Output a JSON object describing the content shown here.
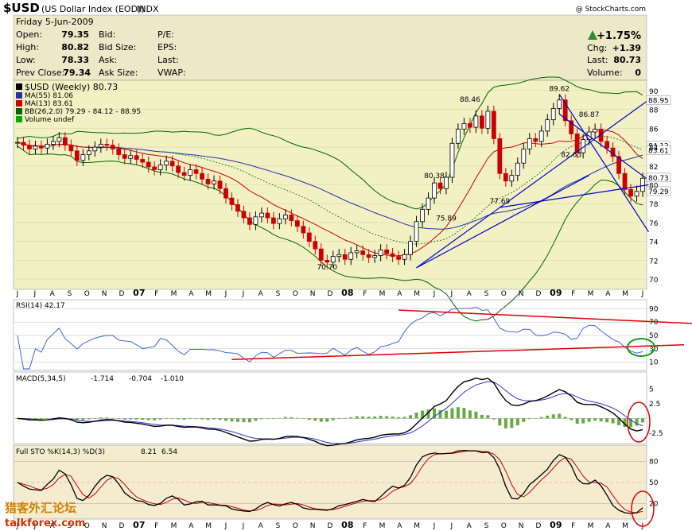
{
  "header": {
    "symbol": "$USD",
    "name": "(US Dollar Index (EOD))",
    "exchange": "INDX",
    "copyright": "@ StockCharts.com"
  },
  "quote": {
    "date": "Friday  5-Jun-2009",
    "open_label": "Open:",
    "open": "79.35",
    "high_label": "High:",
    "high": "80.82",
    "low_label": "Low:",
    "low": "78.33",
    "prev_label": "Prev Close:",
    "prev": "79.34",
    "bid_label": "Bid:",
    "bidsize_label": "Bid Size:",
    "ask_label": "Ask:",
    "asksize_label": "Ask Size:",
    "pe_label": "P/E:",
    "eps_label": "EPS:",
    "last_label": "Last:",
    "vwap_label": "VWAP:",
    "pct_change": "+1.75%",
    "chg_label": "Chg:",
    "chg": "+1.39",
    "last2_label": "Last:",
    "last2": "80.73",
    "volume_label": "Volume:",
    "volume": "0",
    "up_color": "#2e8b2e"
  },
  "legend": {
    "main": "$USD (Weekly) 80.73",
    "ma55": "MA(55) 81.06",
    "ma13": "MA(13) 83.61",
    "bb": "BB(26,2.0) 79.29 - 84.12 - 88.95",
    "volume": "Volume undef"
  },
  "panels": {
    "rsi": "RSI(14) 42.17",
    "macd_label": "MACD(5,34,5)",
    "macd_v1": "-1.714",
    "macd_v2": "-0.704",
    "macd_v3": "-1.010",
    "sto_label": "Full STO %K(14,3) %D(3)",
    "sto_k": "8.21",
    "sto_d": "6.54"
  },
  "watermark": {
    "chinese": "猎客外汇论坛",
    "site": "talkforex.com"
  },
  "x_axis_labels": [
    "J",
    "J",
    "A",
    "S",
    "O",
    "N",
    "D",
    "07",
    "F",
    "M",
    "A",
    "M",
    "J",
    "J",
    "A",
    "S",
    "O",
    "N",
    "D",
    "08",
    "F",
    "M",
    "A",
    "M",
    "J",
    "J",
    "A",
    "S",
    "O",
    "N",
    "D",
    "09",
    "F",
    "M",
    "A",
    "M",
    "J"
  ],
  "colors": {
    "up": "#000000",
    "down": "#cc0000",
    "ma55": "#2233aa",
    "ma13": "#cc0000",
    "bb": "#006600",
    "trend_blue": "#0000cc",
    "trend_red": "#dd0000",
    "rsi": "#3355cc",
    "macd_hist": "#66aa44",
    "signal": "#3333cc"
  },
  "chart_data": {
    "type": "candlestick",
    "title": "$USD (US Dollar Index (EOD)) Weekly",
    "ylim": [
      69,
      91
    ],
    "y_ticks": [
      70,
      72,
      74,
      76,
      78,
      80,
      82,
      84,
      86,
      88,
      90
    ],
    "price_annotations": [
      {
        "label": "70.70",
        "value": 70.7
      },
      {
        "label": "75.89",
        "value": 75.89
      },
      {
        "label": "77.69",
        "value": 77.69
      },
      {
        "label": "80.38",
        "value": 80.38
      },
      {
        "label": "88.46",
        "value": 88.46
      },
      {
        "label": "89.62",
        "value": 89.62
      },
      {
        "label": "86.87",
        "value": 86.87
      },
      {
        "label": "82.63",
        "value": 82.63
      }
    ],
    "right_labels": [
      {
        "label": "88.95",
        "value": 88.95
      },
      {
        "label": "84.12",
        "value": 84.12
      },
      {
        "label": "83.61",
        "value": 83.61
      },
      {
        "label": "80.73",
        "value": 80.73
      },
      {
        "label": "79.29",
        "value": 79.29
      }
    ],
    "weekly_close": [
      84.5,
      84.2,
      83.8,
      84.1,
      83.9,
      84.3,
      84.6,
      85.0,
      84.2,
      83.6,
      82.6,
      83.2,
      83.6,
      84.0,
      84.3,
      84.2,
      83.8,
      83.2,
      82.8,
      83.1,
      82.7,
      82.4,
      81.9,
      81.6,
      82.1,
      82.5,
      82.0,
      81.3,
      81.0,
      81.6,
      81.2,
      80.6,
      80.1,
      80.4,
      79.6,
      78.6,
      77.9,
      77.2,
      76.5,
      75.8,
      76.6,
      77.0,
      76.5,
      75.9,
      76.4,
      76.8,
      76.2,
      75.6,
      74.9,
      74.0,
      73.2,
      72.0,
      71.8,
      72.4,
      72.6,
      72.1,
      72.8,
      73.0,
      72.6,
      72.3,
      72.5,
      73.1,
      72.7,
      72.4,
      72.1,
      72.6,
      74.0,
      76.1,
      77.4,
      78.6,
      80.2,
      79.6,
      80.8,
      84.4,
      85.9,
      86.5,
      86.1,
      87.3,
      86.0,
      87.8,
      84.9,
      81.2,
      80.4,
      81.0,
      82.3,
      83.8,
      84.9,
      84.6,
      85.7,
      86.9,
      88.1,
      89.0,
      86.8,
      85.4,
      83.4,
      84.8,
      85.6,
      85.9,
      84.6,
      83.9,
      83.0,
      81.2,
      79.5,
      78.8,
      79.3,
      80.7
    ],
    "rsi": {
      "ylim": [
        0,
        100
      ],
      "y_ticks": [
        10,
        30,
        50,
        70,
        90
      ],
      "last": 42.17
    },
    "macd": {
      "y_ticks": [
        -2.5,
        2.5,
        5.0
      ],
      "last_macd": -1.714,
      "last_signal": -0.704,
      "last_hist": -1.01
    },
    "stochastic": {
      "ylim": [
        0,
        100
      ],
      "y_ticks": [
        20,
        50,
        80
      ],
      "k": 8.21,
      "d": 6.54
    }
  }
}
